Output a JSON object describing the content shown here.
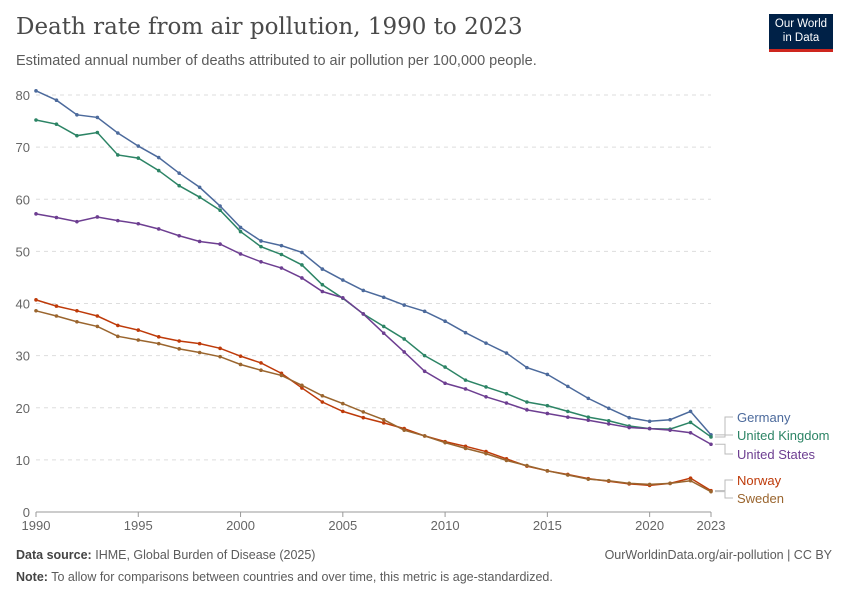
{
  "title": "Death rate from air pollution, 1990 to 2023",
  "subtitle": "Estimated annual number of deaths attributed to air pollution per 100,000 people.",
  "logo": {
    "line1": "Our World",
    "line2": "in Data"
  },
  "footer": {
    "source_label": "Data source:",
    "source": "IHME, Global Burden of Disease (2025)",
    "url": "OurWorldinData.org/air-pollution | CC BY",
    "note_label": "Note:",
    "note": "To allow for comparisons between countries and over time, this metric is age-standardized."
  },
  "chart_data": {
    "type": "line",
    "x": [
      1990,
      1991,
      1992,
      1993,
      1994,
      1995,
      1996,
      1997,
      1998,
      1999,
      2000,
      2001,
      2002,
      2003,
      2004,
      2005,
      2006,
      2007,
      2008,
      2009,
      2010,
      2011,
      2012,
      2013,
      2014,
      2015,
      2016,
      2017,
      2018,
      2019,
      2020,
      2021,
      2022,
      2023
    ],
    "xlim": [
      1990,
      2023
    ],
    "ylim": [
      0,
      80
    ],
    "xticks": [
      "1990",
      "1995",
      "2000",
      "2005",
      "2010",
      "2015",
      "2020",
      "2023"
    ],
    "yticks": [
      "0",
      "10",
      "20",
      "30",
      "40",
      "50",
      "60",
      "70",
      "80"
    ],
    "grid": "horizontal dashed",
    "legend": "right, end labels",
    "series": [
      {
        "name": "Germany",
        "color": "#4C6A9C",
        "values": [
          80.8,
          79,
          76.2,
          75.7,
          72.7,
          70.2,
          68,
          65,
          62.3,
          58.7,
          54.6,
          52,
          51.1,
          49.8,
          46.6,
          44.5,
          42.5,
          41.2,
          39.7,
          38.5,
          36.6,
          34.4,
          32.4,
          30.5,
          27.7,
          26.4,
          24.1,
          21.8,
          19.9,
          18.1,
          17.4,
          17.7,
          19.3,
          14.8
        ]
      },
      {
        "name": "United Kingdom",
        "color": "#2C8465",
        "values": [
          75.2,
          74.4,
          72.2,
          72.8,
          68.5,
          67.9,
          65.5,
          62.6,
          60.4,
          57.9,
          53.8,
          50.9,
          49.4,
          47.4,
          43.6,
          41.0,
          38.0,
          35.6,
          33.2,
          30.0,
          27.8,
          25.3,
          24.0,
          22.7,
          21.1,
          20.4,
          19.3,
          18.2,
          17.5,
          16.5,
          16.0,
          15.9,
          17.2,
          14.4
        ]
      },
      {
        "name": "United States",
        "color": "#6D3E91",
        "values": [
          57.2,
          56.5,
          55.7,
          56.6,
          55.9,
          55.3,
          54.3,
          53.0,
          51.9,
          51.4,
          49.5,
          48.0,
          46.8,
          44.9,
          42.3,
          41.1,
          38.0,
          34.3,
          30.7,
          27.0,
          24.7,
          23.6,
          22.1,
          20.9,
          19.6,
          18.9,
          18.2,
          17.6,
          16.9,
          16.2,
          16.0,
          15.7,
          15.2,
          13.0
        ]
      },
      {
        "name": "Norway",
        "color": "#BE3A09",
        "values": [
          40.7,
          39.5,
          38.6,
          37.6,
          35.8,
          34.9,
          33.6,
          32.8,
          32.3,
          31.4,
          29.9,
          28.6,
          26.6,
          23.8,
          21.1,
          19.3,
          18.1,
          17.1,
          16.0,
          14.6,
          13.5,
          12.6,
          11.6,
          10.2,
          8.8,
          7.9,
          7.2,
          6.4,
          5.9,
          5.4,
          5.1,
          5.5,
          6.5,
          4.1
        ]
      },
      {
        "name": "Sweden",
        "color": "#9A652E",
        "values": [
          38.6,
          37.6,
          36.5,
          35.6,
          33.7,
          33.0,
          32.3,
          31.3,
          30.6,
          29.8,
          28.3,
          27.2,
          26.2,
          24.3,
          22.3,
          20.8,
          19.2,
          17.7,
          15.7,
          14.6,
          13.3,
          12.2,
          11.2,
          9.9,
          8.9,
          7.9,
          7.1,
          6.3,
          6.0,
          5.5,
          5.3,
          5.5,
          6.0,
          3.9
        ]
      }
    ]
  }
}
